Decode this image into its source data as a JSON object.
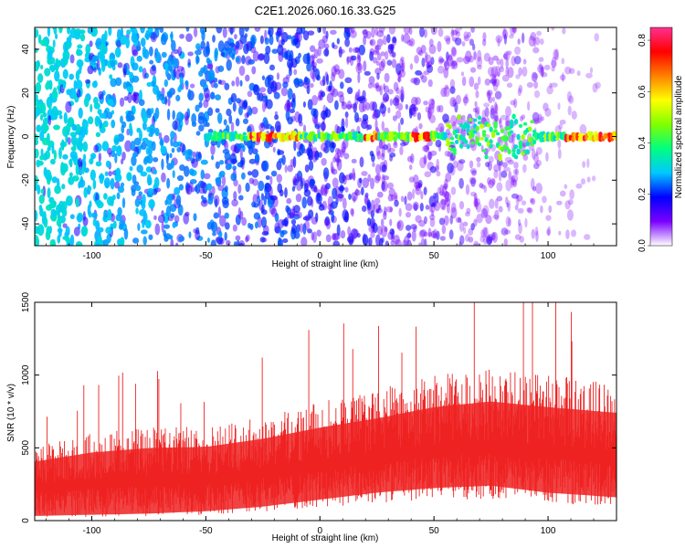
{
  "title": "C2E1.2026.060.16.33.G25",
  "chart_data": [
    {
      "type": "heatmap",
      "xlabel": "Height of straight line (km)",
      "ylabel": "Frequency (Hz)",
      "xlim": [
        -125,
        130
      ],
      "ylim": [
        -50,
        50
      ],
      "xticks": [
        -100,
        -50,
        0,
        50,
        100
      ],
      "yticks": [
        -40,
        -20,
        0,
        20,
        40
      ],
      "colorbar": {
        "label": "Normalized spectral amplitude",
        "range": [
          0.0,
          0.85
        ],
        "ticks": [
          0.0,
          0.2,
          0.4,
          0.6,
          0.8
        ],
        "colormap": [
          "#ffffff",
          "#7a00ff",
          "#0000ff",
          "#00c8ff",
          "#00ff80",
          "#80ff00",
          "#ffff00",
          "#ff8000",
          "#ff0000",
          "#ff3090"
        ]
      },
      "ridge": {
        "frequency": 0,
        "start_x": -50,
        "end_x": 130,
        "strong_segments": [
          [
            -30,
            -10
          ],
          [
            20,
            25
          ],
          [
            40,
            48
          ],
          [
            108,
            120
          ],
          [
            120,
            130
          ]
        ]
      }
    },
    {
      "type": "area",
      "xlabel": "Height of straight line (km)",
      "ylabel": "SNR (10 * v/v)",
      "xlim": [
        -125,
        130
      ],
      "ylim": [
        0,
        1500
      ],
      "xticks": [
        -100,
        -50,
        0,
        50,
        100
      ],
      "yticks": [
        0,
        500,
        1000,
        1500
      ],
      "color": "#ee2222",
      "envelope": {
        "x": [
          -125,
          -100,
          -75,
          -50,
          -25,
          0,
          25,
          50,
          75,
          100,
          130
        ],
        "upper": [
          520,
          600,
          640,
          650,
          720,
          820,
          900,
          1000,
          1050,
          1000,
          950
        ],
        "lower": [
          20,
          25,
          30,
          40,
          60,
          90,
          120,
          140,
          150,
          120,
          100
        ],
        "peak_max": 1500
      }
    }
  ]
}
